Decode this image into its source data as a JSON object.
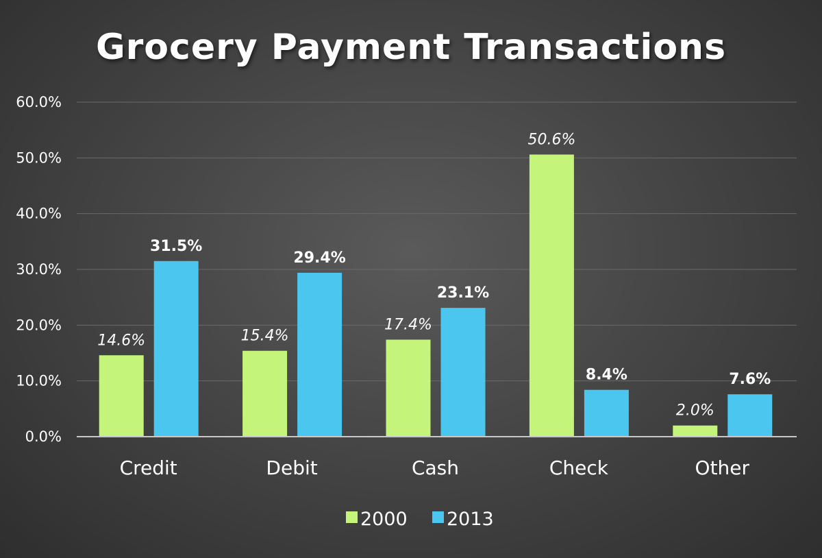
{
  "chart_data": {
    "type": "bar",
    "title": "Grocery Payment Transactions",
    "categories": [
      "Credit",
      "Debit",
      "Cash",
      "Check",
      "Other"
    ],
    "series": [
      {
        "name": "2000",
        "values": [
          14.6,
          15.4,
          17.4,
          50.6,
          2.0
        ],
        "labels": [
          "14.6%",
          "15.4%",
          "17.4%",
          "50.6%",
          "2.0%"
        ],
        "color": "#c4f57a",
        "label_style": "italic"
      },
      {
        "name": "2013",
        "values": [
          31.5,
          29.4,
          23.1,
          8.4,
          7.6
        ],
        "labels": [
          "31.5%",
          "29.4%",
          "23.1%",
          "8.4%",
          "7.6%"
        ],
        "color": "#4bc6ee",
        "label_style": "bold"
      }
    ],
    "ylim": [
      0,
      60
    ],
    "yticks": [
      0,
      10,
      20,
      30,
      40,
      50,
      60
    ],
    "ytick_labels": [
      "0.0%",
      "10.0%",
      "20.0%",
      "30.0%",
      "40.0%",
      "50.0%",
      "60.0%"
    ],
    "grid": true,
    "legend_position": "bottom"
  },
  "colors": {
    "background": "#464646",
    "series_2000": "#c4f57a",
    "series_2013": "#4bc6ee"
  }
}
